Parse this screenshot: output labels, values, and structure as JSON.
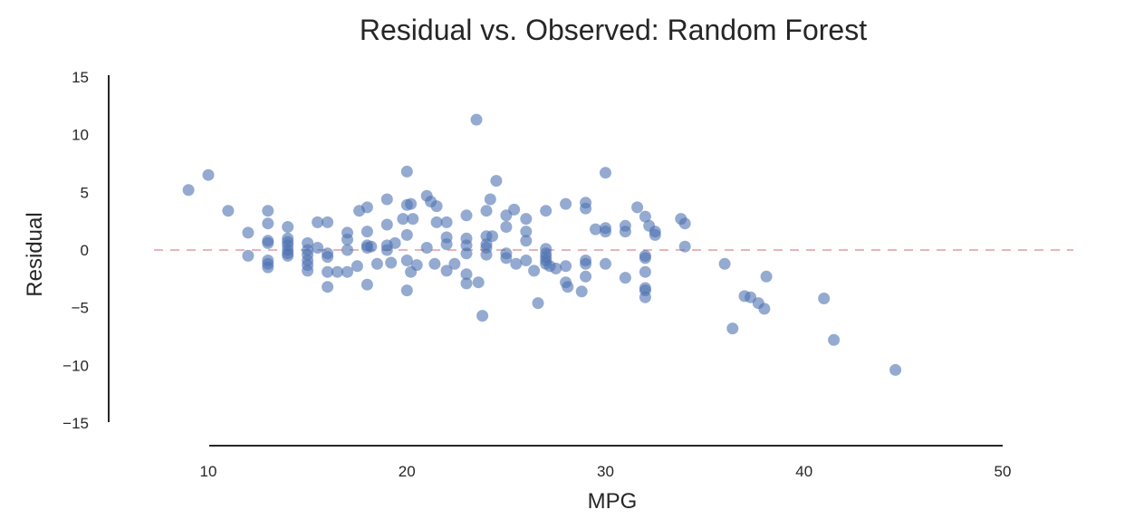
{
  "chart_data": {
    "type": "scatter",
    "title": "Residual vs. Observed: Random Forest",
    "xlabel": "MPG",
    "ylabel": "Residual",
    "xlim": [
      5,
      53
    ],
    "ylim": [
      -15,
      15
    ],
    "xticks": [
      10,
      20,
      30,
      40,
      50
    ],
    "yticks": [
      -15,
      -10,
      -5,
      0,
      5,
      10,
      15
    ],
    "reference_line": {
      "y": 0,
      "style": "dashed",
      "color": "#e8b4b8"
    },
    "point_color": "#4c72b0",
    "point_alpha": 0.6,
    "grid": false,
    "series": [
      {
        "points": [
          [
            9,
            5.2
          ],
          [
            10,
            6.5
          ],
          [
            11,
            3.4
          ],
          [
            12,
            1.5
          ],
          [
            12,
            -0.5
          ],
          [
            13,
            3.4
          ],
          [
            13,
            2.3
          ],
          [
            13,
            0.8
          ],
          [
            13,
            0.6
          ],
          [
            13,
            -0.9
          ],
          [
            13,
            -1.2
          ],
          [
            13,
            -1.5
          ],
          [
            14,
            2.0
          ],
          [
            14,
            1.0
          ],
          [
            14,
            0.7
          ],
          [
            14,
            0.4
          ],
          [
            14,
            0.0
          ],
          [
            14,
            -0.3
          ],
          [
            14,
            -0.5
          ],
          [
            15,
            0.6
          ],
          [
            15,
            0.0
          ],
          [
            15,
            -0.4
          ],
          [
            15,
            -0.9
          ],
          [
            15,
            -1.3
          ],
          [
            15,
            -1.8
          ],
          [
            15.5,
            0.2
          ],
          [
            15.5,
            2.4
          ],
          [
            16,
            2.4
          ],
          [
            16,
            -0.3
          ],
          [
            16,
            -0.6
          ],
          [
            16,
            -1.9
          ],
          [
            16,
            -3.2
          ],
          [
            16.5,
            -1.9
          ],
          [
            17,
            1.5
          ],
          [
            17,
            0.9
          ],
          [
            17,
            0.0
          ],
          [
            17,
            -1.9
          ],
          [
            17.5,
            -1.4
          ],
          [
            17.6,
            3.4
          ],
          [
            18,
            3.7
          ],
          [
            18,
            1.6
          ],
          [
            18,
            0.4
          ],
          [
            18,
            0.2
          ],
          [
            18,
            -3.0
          ],
          [
            18.2,
            0.3
          ],
          [
            18.5,
            -1.2
          ],
          [
            19,
            4.4
          ],
          [
            19,
            2.2
          ],
          [
            19,
            0.4
          ],
          [
            19,
            0.0
          ],
          [
            19.2,
            -1.1
          ],
          [
            19.4,
            0.6
          ],
          [
            19.8,
            2.7
          ],
          [
            20,
            6.8
          ],
          [
            20,
            3.9
          ],
          [
            20,
            1.3
          ],
          [
            20,
            -0.9
          ],
          [
            20,
            -3.5
          ],
          [
            20.2,
            4.0
          ],
          [
            20.2,
            -1.9
          ],
          [
            20.3,
            2.7
          ],
          [
            20.5,
            -1.3
          ],
          [
            21,
            4.7
          ],
          [
            21,
            0.2
          ],
          [
            21.2,
            4.2
          ],
          [
            21.4,
            -1.2
          ],
          [
            21.5,
            3.8
          ],
          [
            21.5,
            2.4
          ],
          [
            22,
            2.4
          ],
          [
            22,
            1.1
          ],
          [
            22,
            0.5
          ],
          [
            22,
            -1.8
          ],
          [
            22.4,
            -1.2
          ],
          [
            23,
            3.0
          ],
          [
            23,
            1.0
          ],
          [
            23,
            0.4
          ],
          [
            23,
            -0.3
          ],
          [
            23,
            -2.1
          ],
          [
            23,
            -2.9
          ],
          [
            23.5,
            11.3
          ],
          [
            23.6,
            -2.8
          ],
          [
            23.8,
            -5.7
          ],
          [
            24,
            3.4
          ],
          [
            24,
            1.2
          ],
          [
            24,
            0.5
          ],
          [
            24,
            0.2
          ],
          [
            24,
            -0.4
          ],
          [
            24.2,
            4.4
          ],
          [
            24.3,
            1.2
          ],
          [
            24.5,
            6.0
          ],
          [
            25,
            3.0
          ],
          [
            25,
            2.0
          ],
          [
            25,
            -0.3
          ],
          [
            25,
            -0.7
          ],
          [
            25.4,
            3.5
          ],
          [
            25.5,
            -1.2
          ],
          [
            26,
            2.7
          ],
          [
            26,
            1.6
          ],
          [
            26,
            0.8
          ],
          [
            26,
            -0.9
          ],
          [
            26.4,
            -1.8
          ],
          [
            26.6,
            -4.6
          ],
          [
            27,
            3.4
          ],
          [
            27,
            0.1
          ],
          [
            27,
            -0.3
          ],
          [
            27,
            -0.6
          ],
          [
            27,
            -0.9
          ],
          [
            27,
            -1.2
          ],
          [
            27.2,
            -1.4
          ],
          [
            27.5,
            -1.6
          ],
          [
            28,
            4.0
          ],
          [
            28,
            -1.4
          ],
          [
            28,
            -2.8
          ],
          [
            28.1,
            -3.2
          ],
          [
            28.8,
            -3.6
          ],
          [
            29,
            4.1
          ],
          [
            29,
            3.6
          ],
          [
            29,
            -0.9
          ],
          [
            29,
            -1.2
          ],
          [
            29,
            -2.3
          ],
          [
            29.5,
            1.8
          ],
          [
            30,
            6.7
          ],
          [
            30,
            1.9
          ],
          [
            30,
            1.6
          ],
          [
            30,
            -1.2
          ],
          [
            31,
            2.1
          ],
          [
            31,
            1.6
          ],
          [
            31,
            -2.4
          ],
          [
            31.6,
            3.7
          ],
          [
            32,
            2.9
          ],
          [
            32,
            -0.5
          ],
          [
            32,
            -0.7
          ],
          [
            32,
            -1.9
          ],
          [
            32,
            -3.3
          ],
          [
            32,
            -3.5
          ],
          [
            32,
            -4.1
          ],
          [
            32.2,
            2.1
          ],
          [
            32.5,
            1.6
          ],
          [
            32.5,
            1.3
          ],
          [
            33.8,
            2.7
          ],
          [
            34,
            2.3
          ],
          [
            34,
            0.3
          ],
          [
            36,
            -1.2
          ],
          [
            36.4,
            -6.8
          ],
          [
            37,
            -4.0
          ],
          [
            37.3,
            -4.1
          ],
          [
            37.7,
            -4.6
          ],
          [
            38,
            -5.1
          ],
          [
            38.1,
            -2.3
          ],
          [
            41,
            -4.2
          ],
          [
            41.5,
            -7.8
          ],
          [
            44.6,
            -10.4
          ]
        ]
      }
    ]
  }
}
